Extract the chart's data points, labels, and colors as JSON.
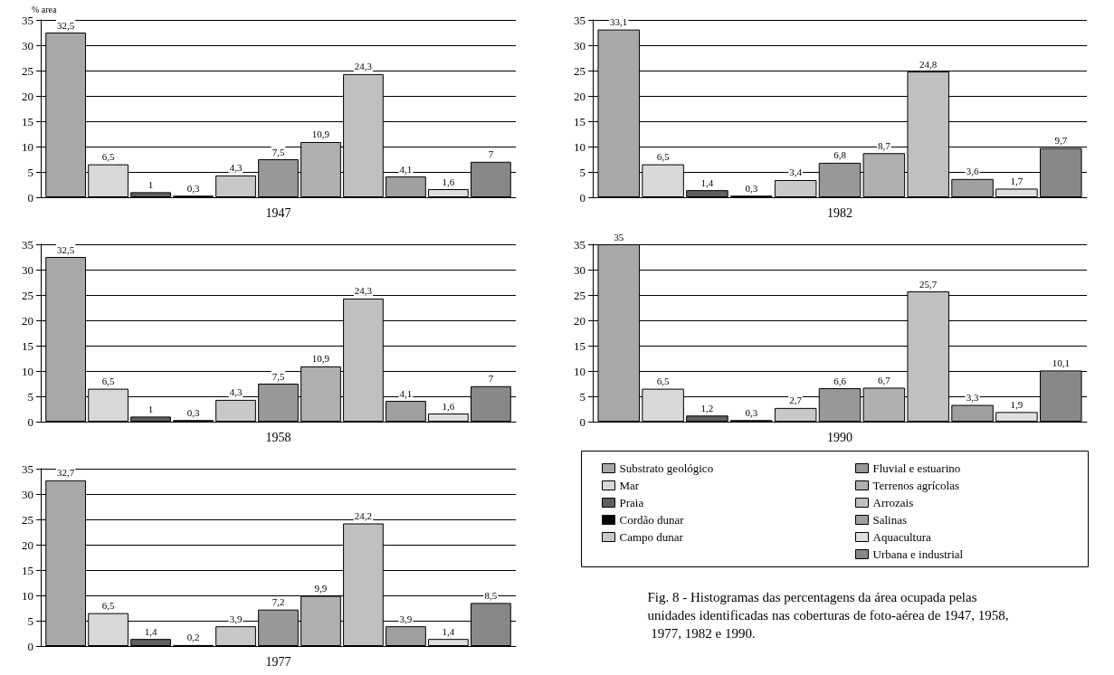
{
  "chart_data": [
    {
      "type": "bar",
      "ylabel": "% area",
      "xlabel": "1947",
      "categories": [
        null
      ],
      "ylim": [
        0,
        35
      ],
      "yticks": [
        0,
        5,
        10,
        15,
        20,
        25,
        30,
        35
      ],
      "grid": "y",
      "tick_labels": "y",
      "series": [
        {
          "color": "#a8a8a8",
          "values": [
            32.5
          ],
          "value_labels": [
            "32,5"
          ]
        },
        {
          "color": "#d8d8d8",
          "values": [
            6.5
          ],
          "value_labels": [
            "6,5"
          ]
        },
        {
          "color": "#606060",
          "values": [
            1
          ],
          "value_labels": [
            "1"
          ]
        },
        {
          "color": "#000000",
          "values": [
            0.3
          ],
          "value_labels": [
            "0,3"
          ]
        },
        {
          "color": "#c8c8c8",
          "values": [
            4.3
          ],
          "value_labels": [
            "4,3"
          ]
        },
        {
          "color": "#989898",
          "values": [
            7.5
          ],
          "value_labels": [
            "7,5"
          ]
        },
        {
          "color": "#b0b0b0",
          "values": [
            10.9
          ],
          "value_labels": [
            "10,9"
          ]
        },
        {
          "color": "#c0c0c0",
          "values": [
            24.3
          ],
          "value_labels": [
            "24,3"
          ]
        },
        {
          "color": "#a0a0a0",
          "values": [
            4.1
          ],
          "value_labels": [
            "4,1"
          ]
        },
        {
          "color": "#e0e0e0",
          "values": [
            1.6
          ],
          "value_labels": [
            "1,6"
          ]
        },
        {
          "color": "#888888",
          "values": [
            7
          ],
          "value_labels": [
            "7"
          ]
        }
      ]
    },
    {
      "type": "bar",
      "xlabel": "1958",
      "categories": [
        null
      ],
      "ylim": [
        0,
        35
      ],
      "yticks": [
        0,
        5,
        10,
        15,
        20,
        25,
        30,
        35
      ],
      "grid": "y",
      "tick_labels": "y",
      "series": [
        {
          "color": "#a8a8a8",
          "values": [
            32.5
          ],
          "value_labels": [
            "32,5"
          ]
        },
        {
          "color": "#d8d8d8",
          "values": [
            6.5
          ],
          "value_labels": [
            "6,5"
          ]
        },
        {
          "color": "#606060",
          "values": [
            1
          ],
          "value_labels": [
            "1"
          ]
        },
        {
          "color": "#000000",
          "values": [
            0.3
          ],
          "value_labels": [
            "0,3"
          ]
        },
        {
          "color": "#c8c8c8",
          "values": [
            4.3
          ],
          "value_labels": [
            "4,3"
          ]
        },
        {
          "color": "#989898",
          "values": [
            7.5
          ],
          "value_labels": [
            "7,5"
          ]
        },
        {
          "color": "#b0b0b0",
          "values": [
            10.9
          ],
          "value_labels": [
            "10,9"
          ]
        },
        {
          "color": "#c0c0c0",
          "values": [
            24.3
          ],
          "value_labels": [
            "24,3"
          ]
        },
        {
          "color": "#a0a0a0",
          "values": [
            4.1
          ],
          "value_labels": [
            "4,1"
          ]
        },
        {
          "color": "#e0e0e0",
          "values": [
            1.6
          ],
          "value_labels": [
            "1,6"
          ]
        },
        {
          "color": "#888888",
          "values": [
            7
          ],
          "value_labels": [
            "7"
          ]
        }
      ]
    },
    {
      "type": "bar",
      "xlabel": "1977",
      "categories": [
        null
      ],
      "ylim": [
        0,
        35
      ],
      "yticks": [
        0,
        5,
        10,
        15,
        20,
        25,
        30,
        35
      ],
      "grid": "y",
      "tick_labels": "y",
      "series": [
        {
          "color": "#a8a8a8",
          "values": [
            32.7
          ],
          "value_labels": [
            "32,7"
          ]
        },
        {
          "color": "#d8d8d8",
          "values": [
            6.5
          ],
          "value_labels": [
            "6,5"
          ]
        },
        {
          "color": "#606060",
          "values": [
            1.4
          ],
          "value_labels": [
            "1,4"
          ]
        },
        {
          "color": "#000000",
          "values": [
            0.2
          ],
          "value_labels": [
            "0,2"
          ]
        },
        {
          "color": "#c8c8c8",
          "values": [
            3.9
          ],
          "value_labels": [
            "3,9"
          ]
        },
        {
          "color": "#989898",
          "values": [
            7.2
          ],
          "value_labels": [
            "7,2"
          ]
        },
        {
          "color": "#b0b0b0",
          "values": [
            9.9
          ],
          "value_labels": [
            "9,9"
          ]
        },
        {
          "color": "#c0c0c0",
          "values": [
            24.2
          ],
          "value_labels": [
            "24,2"
          ]
        },
        {
          "color": "#a0a0a0",
          "values": [
            3.9
          ],
          "value_labels": [
            "3,9"
          ]
        },
        {
          "color": "#e0e0e0",
          "values": [
            1.4
          ],
          "value_labels": [
            "1,4"
          ]
        },
        {
          "color": "#888888",
          "values": [
            8.5
          ],
          "value_labels": [
            "8,5"
          ]
        }
      ]
    },
    {
      "type": "bar",
      "xlabel": "1982",
      "categories": [
        null
      ],
      "ylim": [
        0,
        35
      ],
      "yticks": [
        0,
        5,
        10,
        15,
        20,
        25,
        30,
        35
      ],
      "grid": "y",
      "tick_labels": "y",
      "series": [
        {
          "color": "#a8a8a8",
          "values": [
            33.1
          ],
          "value_labels": [
            "33,1"
          ]
        },
        {
          "color": "#d8d8d8",
          "values": [
            6.5
          ],
          "value_labels": [
            "6,5"
          ]
        },
        {
          "color": "#606060",
          "values": [
            1.4
          ],
          "value_labels": [
            "1,4"
          ]
        },
        {
          "color": "#000000",
          "values": [
            0.3
          ],
          "value_labels": [
            "0,3"
          ]
        },
        {
          "color": "#c8c8c8",
          "values": [
            3.4
          ],
          "value_labels": [
            "3,4"
          ]
        },
        {
          "color": "#989898",
          "values": [
            6.8
          ],
          "value_labels": [
            "6,8"
          ]
        },
        {
          "color": "#b0b0b0",
          "values": [
            8.7
          ],
          "value_labels": [
            "8,7"
          ]
        },
        {
          "color": "#c0c0c0",
          "values": [
            24.8
          ],
          "value_labels": [
            "24,8"
          ]
        },
        {
          "color": "#a0a0a0",
          "values": [
            3.6
          ],
          "value_labels": [
            "3,6"
          ]
        },
        {
          "color": "#e0e0e0",
          "values": [
            1.7
          ],
          "value_labels": [
            "1,7"
          ]
        },
        {
          "color": "#888888",
          "values": [
            9.7
          ],
          "value_labels": [
            "9,7"
          ]
        }
      ]
    },
    {
      "type": "bar",
      "xlabel": "1990",
      "categories": [
        null
      ],
      "ylim": [
        0,
        35
      ],
      "yticks": [
        0,
        5,
        10,
        15,
        20,
        25,
        30,
        35
      ],
      "grid": "y",
      "tick_labels": "y",
      "legend": "bottom",
      "annotations": [
        "Fig. 8 - Histogramas das percentagens da área ocupada pelas unidades identificadas nas coberturas de foto-aérea de 1947, 1958, 1977, 1982 e 1990."
      ],
      "series": [
        {
          "name": "Substrato geológico",
          "color": "#a8a8a8",
          "values": [
            35
          ],
          "value_labels": [
            "35"
          ]
        },
        {
          "name": "Mar",
          "color": "#d8d8d8",
          "values": [
            6.5
          ],
          "value_labels": [
            "6,5"
          ]
        },
        {
          "name": "Praia",
          "color": "#606060",
          "values": [
            1.2
          ],
          "value_labels": [
            "1,2"
          ]
        },
        {
          "name": "Cordão dunar",
          "color": "#000000",
          "values": [
            0.3
          ],
          "value_labels": [
            "0,3"
          ]
        },
        {
          "name": "Campo dunar",
          "color": "#c8c8c8",
          "values": [
            2.7
          ],
          "value_labels": [
            "2,7"
          ]
        },
        {
          "name": "Fluvial e estuarino",
          "color": "#989898",
          "values": [
            6.6
          ],
          "value_labels": [
            "6,6"
          ]
        },
        {
          "name": "Terrenos agrícolas",
          "color": "#b0b0b0",
          "values": [
            6.7
          ],
          "value_labels": [
            "6,7"
          ]
        },
        {
          "name": "Arrozais",
          "color": "#c0c0c0",
          "values": [
            25.7
          ],
          "value_labels": [
            "25,7"
          ]
        },
        {
          "name": "Salinas",
          "color": "#a0a0a0",
          "values": [
            3.3
          ],
          "value_labels": [
            "3,3"
          ]
        },
        {
          "name": "Aquacultura",
          "color": "#e0e0e0",
          "values": [
            1.9
          ],
          "value_labels": [
            "1,9"
          ]
        },
        {
          "name": "Urbana e industrial",
          "color": "#888888",
          "values": [
            10.1
          ],
          "value_labels": [
            "10,1"
          ]
        }
      ]
    }
  ]
}
